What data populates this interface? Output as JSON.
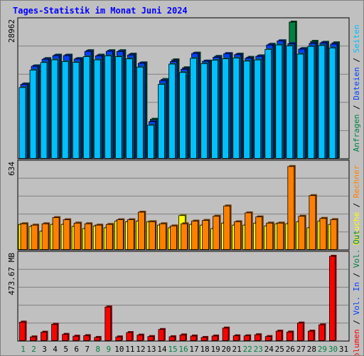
{
  "title": "Tages-Statistik im Monat Juni 2024",
  "chart_data": [
    {
      "type": "bar",
      "name": "pages",
      "ymax_label": "28962",
      "ylim": [
        0,
        28962
      ],
      "legend": [
        {
          "label": "Anfragen",
          "color": "#008040"
        },
        {
          "label": "Dateien",
          "color": "#0040ff"
        },
        {
          "label": "Seiten",
          "color": "#00c0ff"
        }
      ],
      "categories": [
        "1",
        "2",
        "3",
        "4",
        "5",
        "6",
        "7",
        "8",
        "9",
        "10",
        "11",
        "12",
        "13",
        "14",
        "15",
        "16",
        "17",
        "18",
        "19",
        "20",
        "21",
        "22",
        "23",
        "24",
        "25",
        "26",
        "27",
        "28",
        "29",
        "30",
        "31"
      ],
      "series": [
        {
          "name": "Anfragen",
          "values": [
            15860,
            19690,
            21230,
            21960,
            21960,
            21230,
            22900,
            21960,
            22900,
            22900,
            22170,
            20320,
            8370,
            16800,
            20960,
            19280,
            22390,
            20710,
            21690,
            22270,
            22170,
            21490,
            21810,
            24260,
            25000,
            28962,
            23350,
            24880,
            24680,
            24570,
            0
          ]
        },
        {
          "name": "Dateien",
          "values": [
            15760,
            19600,
            21080,
            21850,
            21860,
            21140,
            22750,
            21800,
            22770,
            22720,
            21990,
            20240,
            7890,
            16550,
            20600,
            18960,
            22300,
            20660,
            21500,
            22270,
            22060,
            21300,
            21700,
            24090,
            24970,
            24380,
            23240,
            24440,
            24550,
            24300,
            0
          ]
        },
        {
          "name": "Seiten",
          "values": [
            15100,
            18800,
            20400,
            20970,
            20610,
            20420,
            21650,
            20960,
            21820,
            21640,
            21170,
            19420,
            7110,
            15770,
            20060,
            18290,
            21280,
            20160,
            20880,
            21180,
            21350,
            20700,
            20950,
            23180,
            24110,
            23920,
            22170,
            23810,
            24000,
            23490,
            0
          ]
        }
      ]
    },
    {
      "type": "bar",
      "name": "visits",
      "ymax_label": "634",
      "ylim": [
        0,
        634
      ],
      "legend": [
        {
          "label": "Besuche",
          "color": "#ffff00"
        },
        {
          "label": "Rechner",
          "color": "#ff8000"
        }
      ],
      "categories": [
        "1",
        "2",
        "3",
        "4",
        "5",
        "6",
        "7",
        "8",
        "9",
        "10",
        "11",
        "12",
        "13",
        "14",
        "15",
        "16",
        "17",
        "18",
        "19",
        "20",
        "21",
        "22",
        "23",
        "24",
        "25",
        "26",
        "27",
        "28",
        "29",
        "30",
        "31"
      ],
      "series": [
        {
          "name": "Besuche",
          "values": [
            189,
            174,
            138,
            189,
            189,
            174,
            158,
            178,
            164,
            214,
            209,
            214,
            209,
            184,
            164,
            255,
            189,
            184,
            158,
            199,
            184,
            184,
            199,
            178,
            194,
            194,
            209,
            164,
            214,
            189,
            0
          ]
        },
        {
          "name": "Rechner",
          "values": [
            194,
            184,
            194,
            240,
            224,
            199,
            194,
            184,
            189,
            224,
            224,
            280,
            209,
            194,
            178,
            194,
            214,
            219,
            250,
            326,
            209,
            275,
            245,
            199,
            199,
            619,
            250,
            403,
            234,
            225,
            0
          ]
        }
      ]
    },
    {
      "type": "bar",
      "name": "volume",
      "ymax_label": "473.67 MB",
      "ylim": [
        0,
        473.67
      ],
      "legend": [
        {
          "label": "Volumen",
          "color": "#ff0000"
        },
        {
          "label": "Vol. In",
          "color": "#0040ff"
        },
        {
          "label": "Vol. Out",
          "color": "#008040"
        }
      ],
      "categories": [
        "1",
        "2",
        "3",
        "4",
        "5",
        "6",
        "7",
        "8",
        "9",
        "10",
        "11",
        "12",
        "13",
        "14",
        "15",
        "16",
        "17",
        "18",
        "19",
        "20",
        "21",
        "22",
        "23",
        "24",
        "25",
        "26",
        "27",
        "28",
        "29",
        "30",
        "31"
      ],
      "series": [
        {
          "name": "Volumen",
          "values": [
            105,
            23,
            49,
            93,
            37,
            27,
            30,
            20,
            189,
            23,
            47,
            33,
            25,
            64,
            24,
            34,
            28,
            20,
            28,
            72,
            29,
            29,
            35,
            25,
            55,
            50,
            100,
            55,
            90,
            470,
            0
          ]
        }
      ]
    }
  ],
  "day_labels": [
    {
      "d": "1",
      "color": "#008040"
    },
    {
      "d": "2",
      "color": "#008040"
    },
    {
      "d": "3",
      "color": "#000000"
    },
    {
      "d": "4",
      "color": "#000000"
    },
    {
      "d": "5",
      "color": "#000000"
    },
    {
      "d": "6",
      "color": "#000000"
    },
    {
      "d": "7",
      "color": "#000000"
    },
    {
      "d": "8",
      "color": "#008040"
    },
    {
      "d": "9",
      "color": "#008040"
    },
    {
      "d": "10",
      "color": "#000000"
    },
    {
      "d": "11",
      "color": "#000000"
    },
    {
      "d": "12",
      "color": "#000000"
    },
    {
      "d": "13",
      "color": "#000000"
    },
    {
      "d": "14",
      "color": "#000000"
    },
    {
      "d": "15",
      "color": "#008040"
    },
    {
      "d": "16",
      "color": "#008040"
    },
    {
      "d": "17",
      "color": "#000000"
    },
    {
      "d": "18",
      "color": "#000000"
    },
    {
      "d": "19",
      "color": "#000000"
    },
    {
      "d": "20",
      "color": "#000000"
    },
    {
      "d": "21",
      "color": "#000000"
    },
    {
      "d": "22",
      "color": "#008040"
    },
    {
      "d": "23",
      "color": "#008040"
    },
    {
      "d": "24",
      "color": "#000000"
    },
    {
      "d": "25",
      "color": "#000000"
    },
    {
      "d": "26",
      "color": "#000000"
    },
    {
      "d": "27",
      "color": "#000000"
    },
    {
      "d": "28",
      "color": "#000000"
    },
    {
      "d": "29",
      "color": "#008040"
    },
    {
      "d": "30",
      "color": "#008040"
    },
    {
      "d": "31",
      "color": "#000000"
    }
  ],
  "legend_separator": " / ",
  "grid": true
}
